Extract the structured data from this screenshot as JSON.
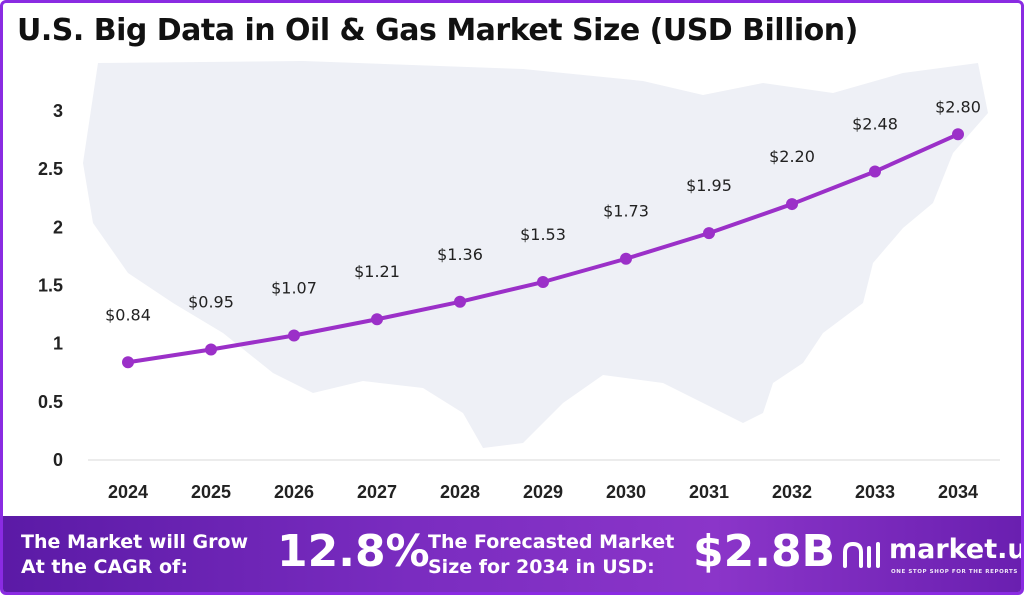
{
  "title": "U.S. Big Data in Oil & Gas Market Size (USD Billion)",
  "chart_data": {
    "type": "line",
    "title": "U.S. Big Data in Oil & Gas Market Size (USD Billion)",
    "categories": [
      "2024",
      "2025",
      "2026",
      "2027",
      "2028",
      "2029",
      "2030",
      "2031",
      "2032",
      "2033",
      "2034"
    ],
    "values": [
      0.84,
      0.95,
      1.07,
      1.21,
      1.36,
      1.53,
      1.73,
      1.95,
      2.2,
      2.48,
      2.8
    ],
    "data_labels": [
      "$0.84",
      "$0.95",
      "$1.07",
      "$1.21",
      "$1.36",
      "$1.53",
      "$1.73",
      "$1.95",
      "$2.20",
      "$2.48",
      "$2.80"
    ],
    "y_ticks": [
      "0",
      "0.5",
      "1",
      "1.5",
      "2",
      "2.5",
      "3"
    ],
    "ylim": [
      0,
      3
    ],
    "xlabel": "",
    "ylabel": "",
    "grid": false,
    "line_color": "#9b30c8"
  },
  "footer": {
    "cagr_text": "The Market will Grow At the CAGR of:",
    "cagr_value": "12.8%",
    "forecast_text": "The Forecasted Market Size for 2034 in USD:",
    "forecast_value": "$2.8B",
    "brand_name": "market.us",
    "brand_tagline": "ONE STOP SHOP FOR THE REPORTS"
  }
}
